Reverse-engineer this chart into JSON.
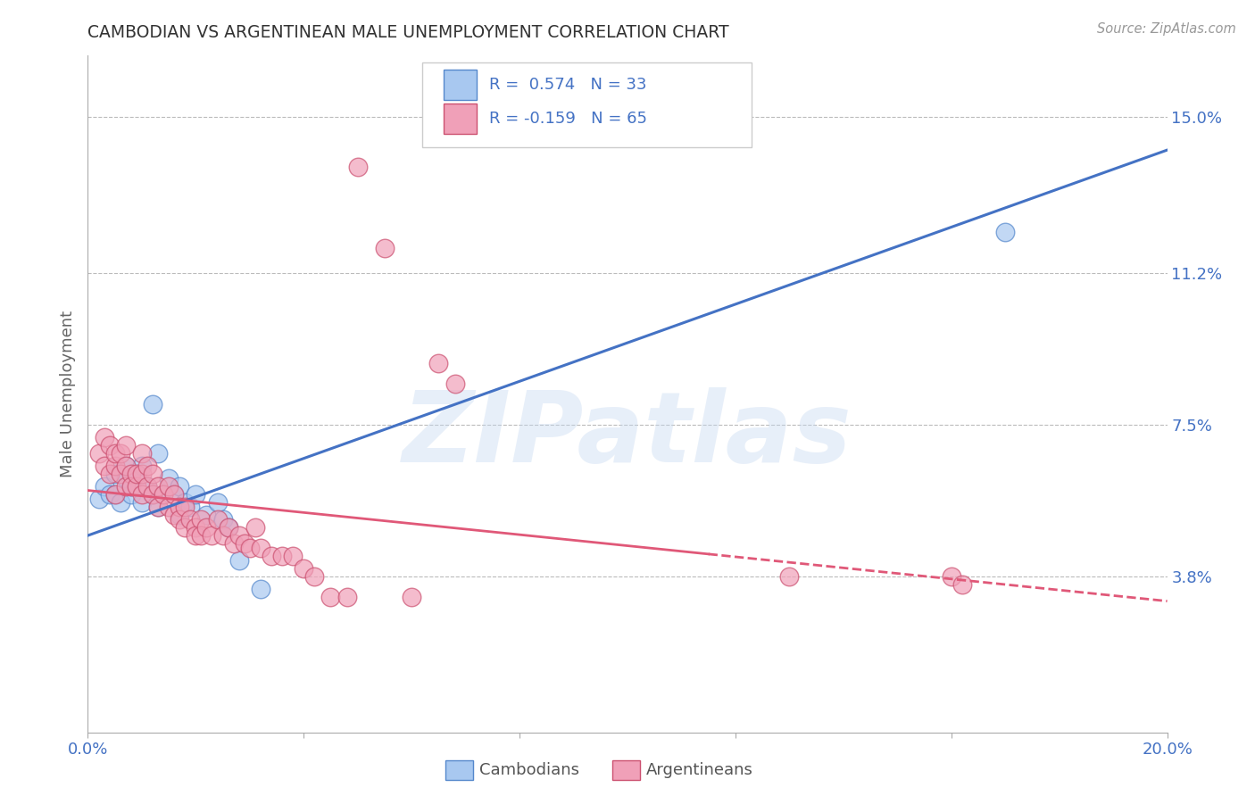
{
  "title": "CAMBODIAN VS ARGENTINEAN MALE UNEMPLOYMENT CORRELATION CHART",
  "source": "Source: ZipAtlas.com",
  "ylabel": "Male Unemployment",
  "xlim": [
    0.0,
    0.2
  ],
  "ylim": [
    0.0,
    0.165
  ],
  "yticks": [
    0.038,
    0.075,
    0.112,
    0.15
  ],
  "ytick_labels": [
    "3.8%",
    "7.5%",
    "11.2%",
    "15.0%"
  ],
  "xticks": [
    0.0,
    0.04,
    0.08,
    0.12,
    0.16,
    0.2
  ],
  "watermark": "ZIPatlas",
  "cambodian_color": "#a8c8f0",
  "cambodian_edge": "#5588cc",
  "argentinean_color": "#f0a0b8",
  "argentinean_edge": "#cc5070",
  "blue_line_color": "#4472c4",
  "pink_line_color": "#e05878",
  "blue_line": {
    "x0": 0.0,
    "y0": 0.048,
    "x1": 0.2,
    "y1": 0.142
  },
  "pink_line_solid_end": 0.115,
  "pink_line": {
    "x0": 0.0,
    "y0": 0.059,
    "x1": 0.2,
    "y1": 0.032
  },
  "background_color": "#ffffff",
  "grid_color": "#bbbbbb",
  "title_color": "#333333",
  "axis_label_color": "#666666",
  "tick_label_color": "#4472c4",
  "cambodian_points": [
    [
      0.002,
      0.057
    ],
    [
      0.003,
      0.06
    ],
    [
      0.004,
      0.058
    ],
    [
      0.005,
      0.063
    ],
    [
      0.005,
      0.058
    ],
    [
      0.006,
      0.056
    ],
    [
      0.007,
      0.062
    ],
    [
      0.007,
      0.065
    ],
    [
      0.008,
      0.058
    ],
    [
      0.008,
      0.06
    ],
    [
      0.009,
      0.063
    ],
    [
      0.01,
      0.056
    ],
    [
      0.01,
      0.065
    ],
    [
      0.011,
      0.06
    ],
    [
      0.012,
      0.058
    ],
    [
      0.012,
      0.08
    ],
    [
      0.013,
      0.068
    ],
    [
      0.013,
      0.055
    ],
    [
      0.014,
      0.058
    ],
    [
      0.015,
      0.062
    ],
    [
      0.016,
      0.058
    ],
    [
      0.017,
      0.06
    ],
    [
      0.017,
      0.053
    ],
    [
      0.018,
      0.056
    ],
    [
      0.019,
      0.055
    ],
    [
      0.02,
      0.058
    ],
    [
      0.022,
      0.053
    ],
    [
      0.024,
      0.056
    ],
    [
      0.025,
      0.052
    ],
    [
      0.026,
      0.05
    ],
    [
      0.028,
      0.042
    ],
    [
      0.032,
      0.035
    ],
    [
      0.17,
      0.122
    ]
  ],
  "argentinean_points": [
    [
      0.002,
      0.068
    ],
    [
      0.003,
      0.065
    ],
    [
      0.003,
      0.072
    ],
    [
      0.004,
      0.063
    ],
    [
      0.004,
      0.07
    ],
    [
      0.005,
      0.065
    ],
    [
      0.005,
      0.068
    ],
    [
      0.005,
      0.058
    ],
    [
      0.006,
      0.063
    ],
    [
      0.006,
      0.068
    ],
    [
      0.007,
      0.06
    ],
    [
      0.007,
      0.065
    ],
    [
      0.007,
      0.07
    ],
    [
      0.008,
      0.063
    ],
    [
      0.008,
      0.06
    ],
    [
      0.009,
      0.06
    ],
    [
      0.009,
      0.063
    ],
    [
      0.01,
      0.058
    ],
    [
      0.01,
      0.063
    ],
    [
      0.01,
      0.068
    ],
    [
      0.011,
      0.06
    ],
    [
      0.011,
      0.065
    ],
    [
      0.012,
      0.058
    ],
    [
      0.012,
      0.063
    ],
    [
      0.013,
      0.055
    ],
    [
      0.013,
      0.06
    ],
    [
      0.014,
      0.058
    ],
    [
      0.015,
      0.055
    ],
    [
      0.015,
      0.06
    ],
    [
      0.016,
      0.058
    ],
    [
      0.016,
      0.053
    ],
    [
      0.017,
      0.055
    ],
    [
      0.017,
      0.052
    ],
    [
      0.018,
      0.055
    ],
    [
      0.018,
      0.05
    ],
    [
      0.019,
      0.052
    ],
    [
      0.02,
      0.05
    ],
    [
      0.02,
      0.048
    ],
    [
      0.021,
      0.052
    ],
    [
      0.021,
      0.048
    ],
    [
      0.022,
      0.05
    ],
    [
      0.023,
      0.048
    ],
    [
      0.024,
      0.052
    ],
    [
      0.025,
      0.048
    ],
    [
      0.026,
      0.05
    ],
    [
      0.027,
      0.046
    ],
    [
      0.028,
      0.048
    ],
    [
      0.029,
      0.046
    ],
    [
      0.03,
      0.045
    ],
    [
      0.031,
      0.05
    ],
    [
      0.032,
      0.045
    ],
    [
      0.034,
      0.043
    ],
    [
      0.036,
      0.043
    ],
    [
      0.038,
      0.043
    ],
    [
      0.04,
      0.04
    ],
    [
      0.042,
      0.038
    ],
    [
      0.045,
      0.033
    ],
    [
      0.048,
      0.033
    ],
    [
      0.06,
      0.033
    ],
    [
      0.13,
      0.038
    ],
    [
      0.16,
      0.038
    ],
    [
      0.162,
      0.036
    ],
    [
      0.05,
      0.138
    ],
    [
      0.055,
      0.118
    ],
    [
      0.065,
      0.09
    ],
    [
      0.068,
      0.085
    ]
  ]
}
